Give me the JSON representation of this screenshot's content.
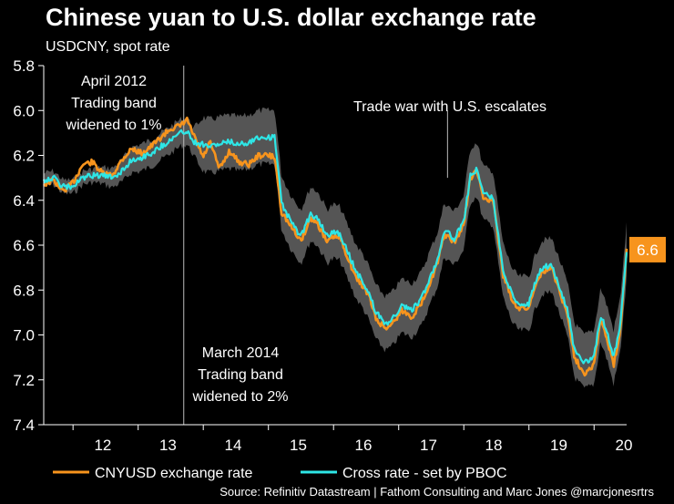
{
  "header": {
    "title": "Chinese yuan to U.S. dollar exchange rate",
    "subtitle": "USDCNY, spot rate"
  },
  "source": "Source: Refinitiv Datastream | Fathom Consulting and Marc Jones @marcjonesrtrs",
  "colors": {
    "background": "#000000",
    "cnyusd": "#f7941d",
    "cross": "#2ee6e6",
    "band": "#555555",
    "end_label_bg": "#f7941d"
  },
  "chart_data": {
    "type": "line",
    "title": "Chinese yuan to U.S. dollar exchange rate",
    "subtitle": "USDCNY, spot rate",
    "xlabel": "",
    "ylabel": "",
    "xlim": [
      2011.55,
      2020.5
    ],
    "ylim": [
      7.4,
      5.8
    ],
    "y_inverted": true,
    "yticks": [
      "5.8",
      "6.0",
      "6.2",
      "6.4",
      "6.6",
      "6.8",
      "7.0",
      "7.2",
      "7.4"
    ],
    "ytick_values": [
      5.8,
      6.0,
      6.2,
      6.4,
      6.6,
      6.8,
      7.0,
      7.2,
      7.4
    ],
    "xticks": [
      "12",
      "13",
      "14",
      "15",
      "16",
      "17",
      "18",
      "19",
      "20"
    ],
    "xtick_values": [
      2012.0,
      2013.0,
      2014.0,
      2015.0,
      2016.0,
      2017.0,
      2018.0,
      2019.0,
      2020.0
    ],
    "grid": false,
    "legend_position": "bottom",
    "series": [
      {
        "name": "CNYUSD exchange rate",
        "x": [
          2011.55,
          2011.7,
          2011.85,
          2012.0,
          2012.15,
          2012.3,
          2012.45,
          2012.6,
          2012.75,
          2012.9,
          2013.05,
          2013.2,
          2013.35,
          2013.5,
          2013.65,
          2013.75,
          2013.85,
          2014.0,
          2014.1,
          2014.25,
          2014.4,
          2014.55,
          2014.7,
          2014.85,
          2015.0,
          2015.1,
          2015.2,
          2015.35,
          2015.5,
          2015.65,
          2015.75,
          2015.9,
          2016.0,
          2016.1,
          2016.2,
          2016.35,
          2016.45,
          2016.55,
          2016.65,
          2016.8,
          2016.9,
          2017.05,
          2017.2,
          2017.35,
          2017.5,
          2017.6,
          2017.7,
          2017.85,
          2018.0,
          2018.1,
          2018.2,
          2018.3,
          2018.45,
          2018.6,
          2018.75,
          2018.85,
          2019.0,
          2019.1,
          2019.2,
          2019.35,
          2019.5,
          2019.6,
          2019.7,
          2019.85,
          2020.0,
          2020.1,
          2020.2,
          2020.3,
          2020.4,
          2020.5
        ],
        "values": [
          6.33,
          6.31,
          6.36,
          6.32,
          6.24,
          6.23,
          6.28,
          6.29,
          6.22,
          6.17,
          6.19,
          6.16,
          6.12,
          6.08,
          6.07,
          6.04,
          6.11,
          6.21,
          6.14,
          6.26,
          6.18,
          6.23,
          6.24,
          6.2,
          6.2,
          6.21,
          6.45,
          6.52,
          6.58,
          6.48,
          6.5,
          6.59,
          6.56,
          6.57,
          6.64,
          6.75,
          6.78,
          6.83,
          6.93,
          6.97,
          6.95,
          6.89,
          6.92,
          6.86,
          6.75,
          6.68,
          6.55,
          6.59,
          6.51,
          6.3,
          6.27,
          6.39,
          6.4,
          6.73,
          6.85,
          6.88,
          6.88,
          6.77,
          6.72,
          6.7,
          6.83,
          6.92,
          7.1,
          7.17,
          7.13,
          6.93,
          7.02,
          7.14,
          6.98,
          6.62
        ]
      },
      {
        "name": "Cross rate - set by PBOC",
        "x": [
          2011.55,
          2011.7,
          2011.85,
          2012.0,
          2012.15,
          2012.3,
          2012.45,
          2012.6,
          2012.75,
          2012.9,
          2013.05,
          2013.2,
          2013.35,
          2013.5,
          2013.65,
          2013.75,
          2013.85,
          2014.0,
          2014.1,
          2014.25,
          2014.4,
          2014.55,
          2014.7,
          2014.85,
          2015.0,
          2015.1,
          2015.2,
          2015.35,
          2015.5,
          2015.65,
          2015.75,
          2015.9,
          2016.0,
          2016.1,
          2016.2,
          2016.35,
          2016.45,
          2016.55,
          2016.65,
          2016.8,
          2016.9,
          2017.05,
          2017.2,
          2017.35,
          2017.5,
          2017.6,
          2017.7,
          2017.85,
          2018.0,
          2018.1,
          2018.2,
          2018.3,
          2018.45,
          2018.6,
          2018.75,
          2018.85,
          2019.0,
          2019.1,
          2019.2,
          2019.35,
          2019.5,
          2019.6,
          2019.7,
          2019.85,
          2020.0,
          2020.1,
          2020.2,
          2020.3,
          2020.4,
          2020.5
        ],
        "values": [
          6.31,
          6.3,
          6.34,
          6.34,
          6.3,
          6.29,
          6.29,
          6.3,
          6.27,
          6.22,
          6.21,
          6.19,
          6.16,
          6.13,
          6.1,
          6.09,
          6.14,
          6.15,
          6.16,
          6.15,
          6.14,
          6.15,
          6.14,
          6.12,
          6.12,
          6.12,
          6.41,
          6.5,
          6.56,
          6.46,
          6.48,
          6.56,
          6.54,
          6.55,
          6.62,
          6.72,
          6.76,
          6.82,
          6.9,
          6.95,
          6.93,
          6.87,
          6.89,
          6.84,
          6.73,
          6.66,
          6.53,
          6.57,
          6.5,
          6.29,
          6.26,
          6.37,
          6.39,
          6.71,
          6.83,
          6.86,
          6.86,
          6.76,
          6.7,
          6.69,
          6.81,
          6.9,
          7.07,
          7.12,
          7.1,
          6.91,
          6.99,
          7.1,
          6.96,
          6.63
        ]
      }
    ],
    "band": {
      "name": "Trading band",
      "x": [
        2011.55,
        2012.3,
        2013.0,
        2013.5,
        2013.65,
        2013.85,
        2014.0,
        2014.5,
        2015.0,
        2015.1,
        2015.2,
        2016.0,
        2016.9,
        2017.7,
        2018.2,
        2018.6,
        2019.0,
        2019.7,
        2020.0,
        2020.5
      ],
      "half_width": [
        0.03,
        0.03,
        0.06,
        0.06,
        0.06,
        0.06,
        0.12,
        0.12,
        0.12,
        0.12,
        0.12,
        0.12,
        0.12,
        0.12,
        0.12,
        0.12,
        0.12,
        0.12,
        0.12,
        0.12
      ]
    },
    "annotations": [
      {
        "lines": [
          "April 2012",
          "Trading band",
          "widened to 1%"
        ]
      },
      {
        "lines": [
          "March 2014",
          "Trading band",
          "widened to 2%"
        ]
      },
      {
        "lines": [
          "Trade war with U.S. escalates"
        ]
      }
    ],
    "end_label": "6.6",
    "end_value": 6.62
  }
}
